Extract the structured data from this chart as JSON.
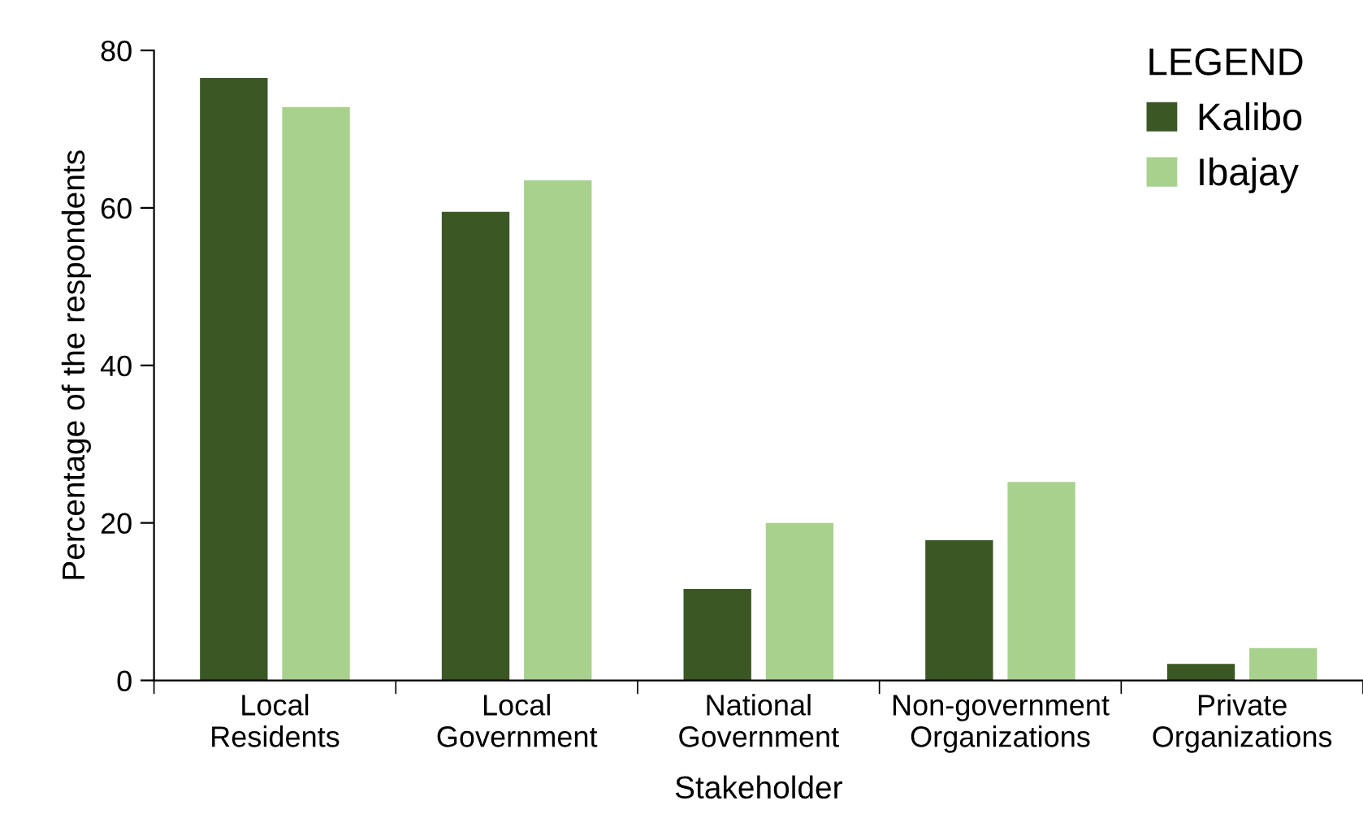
{
  "chart_data": {
    "type": "bar",
    "xlabel": "Stakeholder",
    "ylabel": "Percentage of the respondents",
    "legend_title": "LEGEND",
    "legend": "top right",
    "categories": [
      "Local\nResidents",
      "Local\nGovernment",
      "National\nGovernment",
      "Non-government\nOrganizations",
      "Private\nOrganizations"
    ],
    "series": [
      {
        "name": "Kalibo",
        "color": "#3a5724",
        "values": [
          76.5,
          59.5,
          11.6,
          17.8,
          2.1
        ]
      },
      {
        "name": "Ibajay",
        "color": "#a9d18e",
        "values": [
          72.8,
          63.5,
          20.0,
          25.2,
          4.1
        ]
      }
    ],
    "ylim": [
      0,
      80
    ],
    "yticks": [
      0,
      20,
      40,
      60,
      80
    ],
    "grid": false
  }
}
